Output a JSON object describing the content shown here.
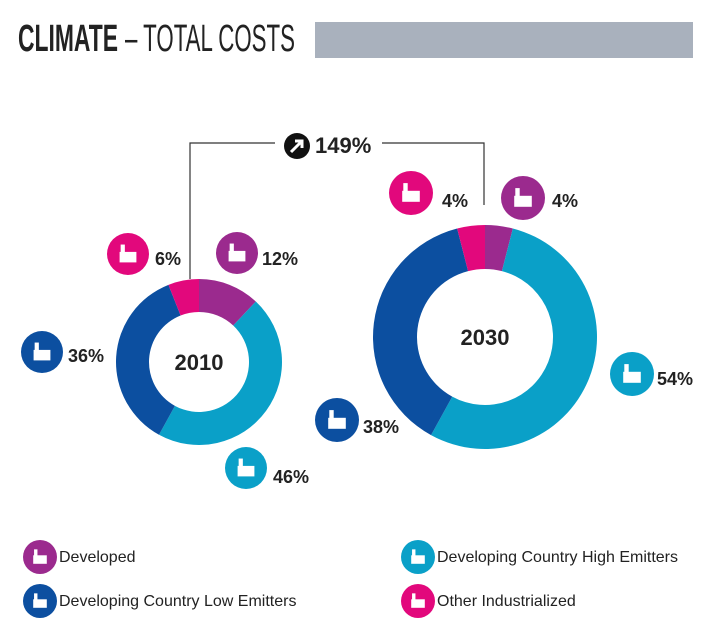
{
  "header": {
    "title": "CLIMATE",
    "subtitle": "– TOTAL COSTS"
  },
  "chart_data": [
    {
      "type": "pie",
      "donut": true,
      "title": "2010",
      "categories": [
        "Developed",
        "Developing Country High Emitters",
        "Developing Country Low Emitters",
        "Other Industrialized"
      ],
      "values": [
        12,
        46,
        36,
        6
      ],
      "value_labels": [
        "12%",
        "46%",
        "36%",
        "6%"
      ],
      "colors": [
        "#9b2a8e",
        "#0aa0c8",
        "#0c4fa0",
        "#e2087c"
      ]
    },
    {
      "type": "pie",
      "donut": true,
      "title": "2030",
      "annotation": "149%",
      "categories": [
        "Developed",
        "Developing Country High Emitters",
        "Developing Country Low Emitters",
        "Other Industrialized"
      ],
      "values": [
        4,
        54,
        38,
        4
      ],
      "value_labels": [
        "4%",
        "54%",
        "38%",
        "4%"
      ],
      "colors": [
        "#9b2a8e",
        "#0aa0c8",
        "#0c4fa0",
        "#e2087c"
      ]
    }
  ]
}
